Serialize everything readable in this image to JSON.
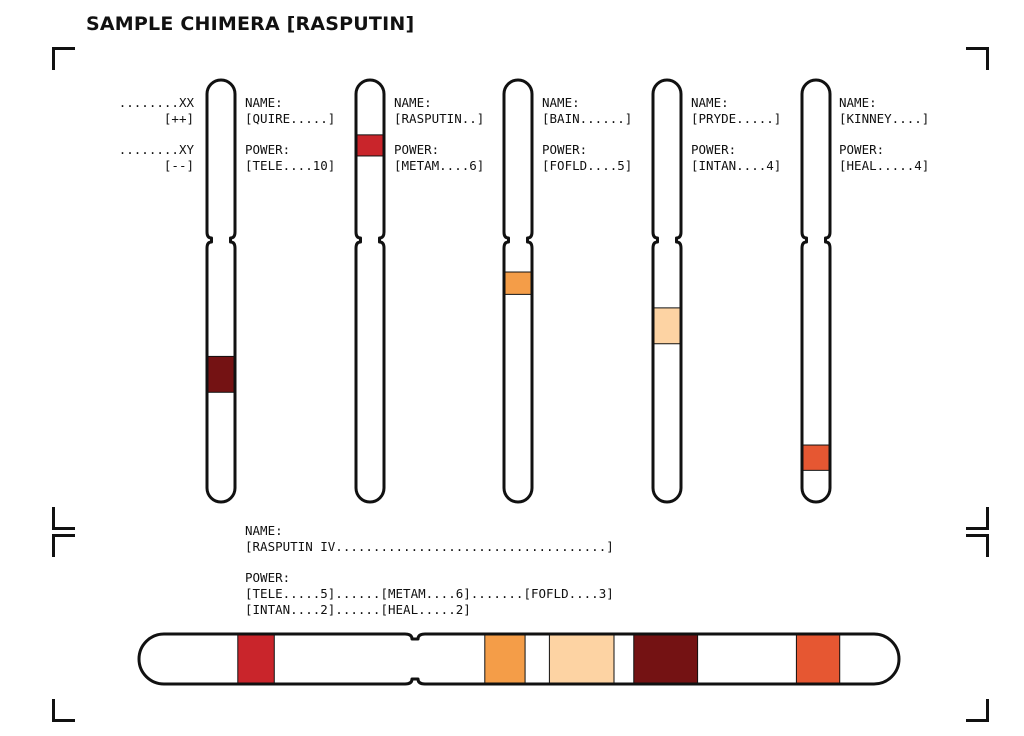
{
  "title": "SAMPLE CHIMERA [RASPUTIN]",
  "legend": {
    "xx_label": "........XX",
    "xx_mark": "[++]",
    "xy_label": "........XY",
    "xy_mark": "[--]"
  },
  "labels": {
    "name": "NAME:",
    "power": "POWER:"
  },
  "colors": {
    "outline": "#111111",
    "tele": "#741213",
    "metam": "#c9252b",
    "fofld": "#f49d48",
    "intan": "#fdd3a3",
    "heal": "#e65732"
  },
  "donors": [
    {
      "name": "[QUIRE.....]",
      "power": "[TELE....10]",
      "band_color": "#741213",
      "band_start": 0.655,
      "band_end": 0.74
    },
    {
      "name": "[RASPUTIN..]",
      "power": "[METAM....6]",
      "band_color": "#c9252b",
      "band_start": 0.13,
      "band_end": 0.18
    },
    {
      "name": "[BAIN......]",
      "power": "[FOFLD....5]",
      "band_color": "#f49d48",
      "band_start": 0.455,
      "band_end": 0.508
    },
    {
      "name": "[PRYDE.....]",
      "power": "[INTAN....4]",
      "band_color": "#fdd3a3",
      "band_start": 0.54,
      "band_end": 0.625
    },
    {
      "name": "[KINNEY....]",
      "power": "[HEAL.....4]",
      "band_color": "#e65732",
      "band_start": 0.865,
      "band_end": 0.925
    }
  ],
  "chimera": {
    "name": "[RASPUTIN IV....................................]",
    "power_line1": "[TELE.....5]......[METAM....6].......[FOFLD....3]",
    "power_line2": "[INTAN....2]......[HEAL.....2]",
    "bands": [
      {
        "power": "METAM",
        "color": "#c9252b",
        "start": 0.13,
        "end": 0.178
      },
      {
        "power": "FOFLD",
        "color": "#f49d48",
        "start": 0.455,
        "end": 0.508
      },
      {
        "power": "INTAN",
        "color": "#fdd3a3",
        "start": 0.54,
        "end": 0.625
      },
      {
        "power": "TELE",
        "color": "#741213",
        "start": 0.651,
        "end": 0.735
      },
      {
        "power": "HEAL",
        "color": "#e65732",
        "start": 0.865,
        "end": 0.922
      }
    ]
  }
}
